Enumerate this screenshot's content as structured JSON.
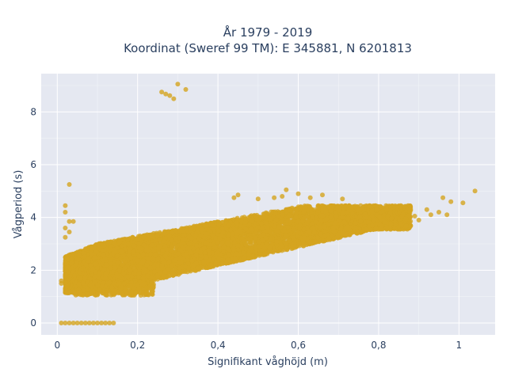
{
  "chart_data": {
    "type": "scatter",
    "title_line1": "År 1979 - 2019",
    "title_line2": "Koordinat (Sweref 99 TM): E 345881, N 6201813",
    "xlabel": "Signifikant våghöjd (m)",
    "ylabel": "Vågperiod (s)",
    "xlim": [
      -0.04,
      1.09
    ],
    "ylim": [
      -0.45,
      9.45
    ],
    "x_ticks": [
      0,
      0.2,
      0.4,
      0.6,
      0.8,
      1
    ],
    "x_tick_labels": [
      "0",
      "0,2",
      "0,4",
      "0,6",
      "0,8",
      "1"
    ],
    "y_ticks": [
      0,
      2,
      4,
      6,
      8
    ],
    "y_tick_labels": [
      "0",
      "2",
      "4",
      "6",
      "8"
    ],
    "grid": true,
    "marker_color": "#d4a41f",
    "plot_bg": "#e5e8f1",
    "points": [
      [
        0.26,
        8.75
      ],
      [
        0.27,
        8.68
      ],
      [
        0.28,
        8.62
      ],
      [
        0.29,
        8.5
      ],
      [
        0.3,
        9.05
      ],
      [
        0.32,
        8.85
      ],
      [
        0.03,
        5.25
      ],
      [
        0.02,
        4.45
      ],
      [
        0.02,
        4.2
      ],
      [
        0.03,
        3.85
      ],
      [
        0.04,
        3.85
      ],
      [
        0.02,
        3.6
      ],
      [
        0.03,
        3.45
      ],
      [
        0.02,
        3.25
      ],
      [
        0.01,
        1.6
      ],
      [
        0.02,
        1.55
      ],
      [
        0.01,
        1.5
      ],
      [
        1.04,
        5.0
      ],
      [
        0.96,
        4.75
      ],
      [
        0.98,
        4.6
      ],
      [
        1.01,
        4.55
      ],
      [
        0.95,
        4.2
      ],
      [
        0.93,
        4.1
      ],
      [
        0.92,
        4.3
      ],
      [
        0.89,
        4.05
      ],
      [
        0.97,
        4.1
      ],
      [
        0.9,
        3.9
      ],
      [
        0.56,
        4.8
      ],
      [
        0.54,
        4.75
      ],
      [
        0.57,
        5.05
      ],
      [
        0.6,
        4.9
      ],
      [
        0.63,
        4.75
      ],
      [
        0.66,
        4.85
      ],
      [
        0.71,
        4.7
      ],
      [
        0.76,
        4.35
      ],
      [
        0.5,
        4.7
      ],
      [
        0.45,
        4.85
      ],
      [
        0.44,
        4.75
      ]
    ],
    "zero_points_x": [
      0.01,
      0.02,
      0.03,
      0.04,
      0.05,
      0.06,
      0.07,
      0.08,
      0.09,
      0.1,
      0.11,
      0.12,
      0.13,
      0.14
    ]
  }
}
